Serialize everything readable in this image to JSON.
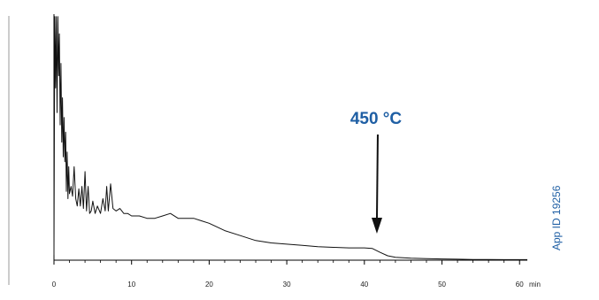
{
  "chart_data": {
    "type": "line",
    "title": "",
    "xlabel": "",
    "ylabel": "",
    "x_unit": "min",
    "xlim": [
      0,
      61
    ],
    "ylim": [
      0,
      100
    ],
    "x_ticks": [
      0,
      10,
      20,
      30,
      40,
      50,
      60
    ],
    "grid": false,
    "legend": "none",
    "series": [
      {
        "x": [
          0,
          0.1,
          0.2,
          0.3,
          0.4,
          0.5,
          0.6,
          0.7,
          0.8,
          0.9,
          1.0,
          1.1,
          1.2,
          1.3,
          1.4,
          1.5,
          1.6,
          1.7,
          1.8,
          1.9,
          2.0,
          2.2,
          2.4,
          2.6,
          2.8,
          3.0,
          3.2,
          3.4,
          3.6,
          3.8,
          4.0,
          4.2,
          4.4,
          4.6,
          4.8,
          5.0,
          5.3,
          5.6,
          6.0,
          6.3,
          6.6,
          6.8,
          7.0,
          7.3,
          7.6,
          8.0,
          8.5,
          9.0,
          9.5,
          10,
          11,
          12,
          13,
          14,
          15,
          16,
          17,
          18,
          19,
          20,
          22,
          24,
          26,
          28,
          30,
          32,
          34,
          36,
          38,
          40,
          41,
          42,
          43,
          44,
          46,
          48,
          50,
          52,
          54,
          56,
          58,
          60,
          61
        ],
        "y": [
          2,
          99,
          70,
          99,
          60,
          99,
          75,
          92,
          55,
          80,
          48,
          66,
          42,
          58,
          40,
          52,
          28,
          44,
          25,
          38,
          27,
          30,
          26,
          38,
          25,
          22,
          29,
          22,
          30,
          21,
          36,
          20,
          30,
          19,
          20,
          24,
          19,
          22,
          19,
          25,
          20,
          30,
          20,
          31,
          21,
          20,
          21,
          19,
          19,
          18,
          18,
          17,
          17,
          18,
          19,
          17,
          17,
          17,
          16,
          15,
          12,
          10,
          8,
          7,
          6.5,
          6,
          5.5,
          5.2,
          5,
          5,
          4.8,
          3.2,
          1.8,
          1.2,
          0.8,
          0.6,
          0.5,
          0.4,
          0.3,
          0.3,
          0.2,
          0.2,
          0.2
        ]
      }
    ],
    "annotation": {
      "text": "450 °C",
      "x": 41.5,
      "color": "#1f5fa4"
    }
  },
  "side_label": {
    "text": "App ID 19256",
    "color": "#1f5fa4"
  }
}
